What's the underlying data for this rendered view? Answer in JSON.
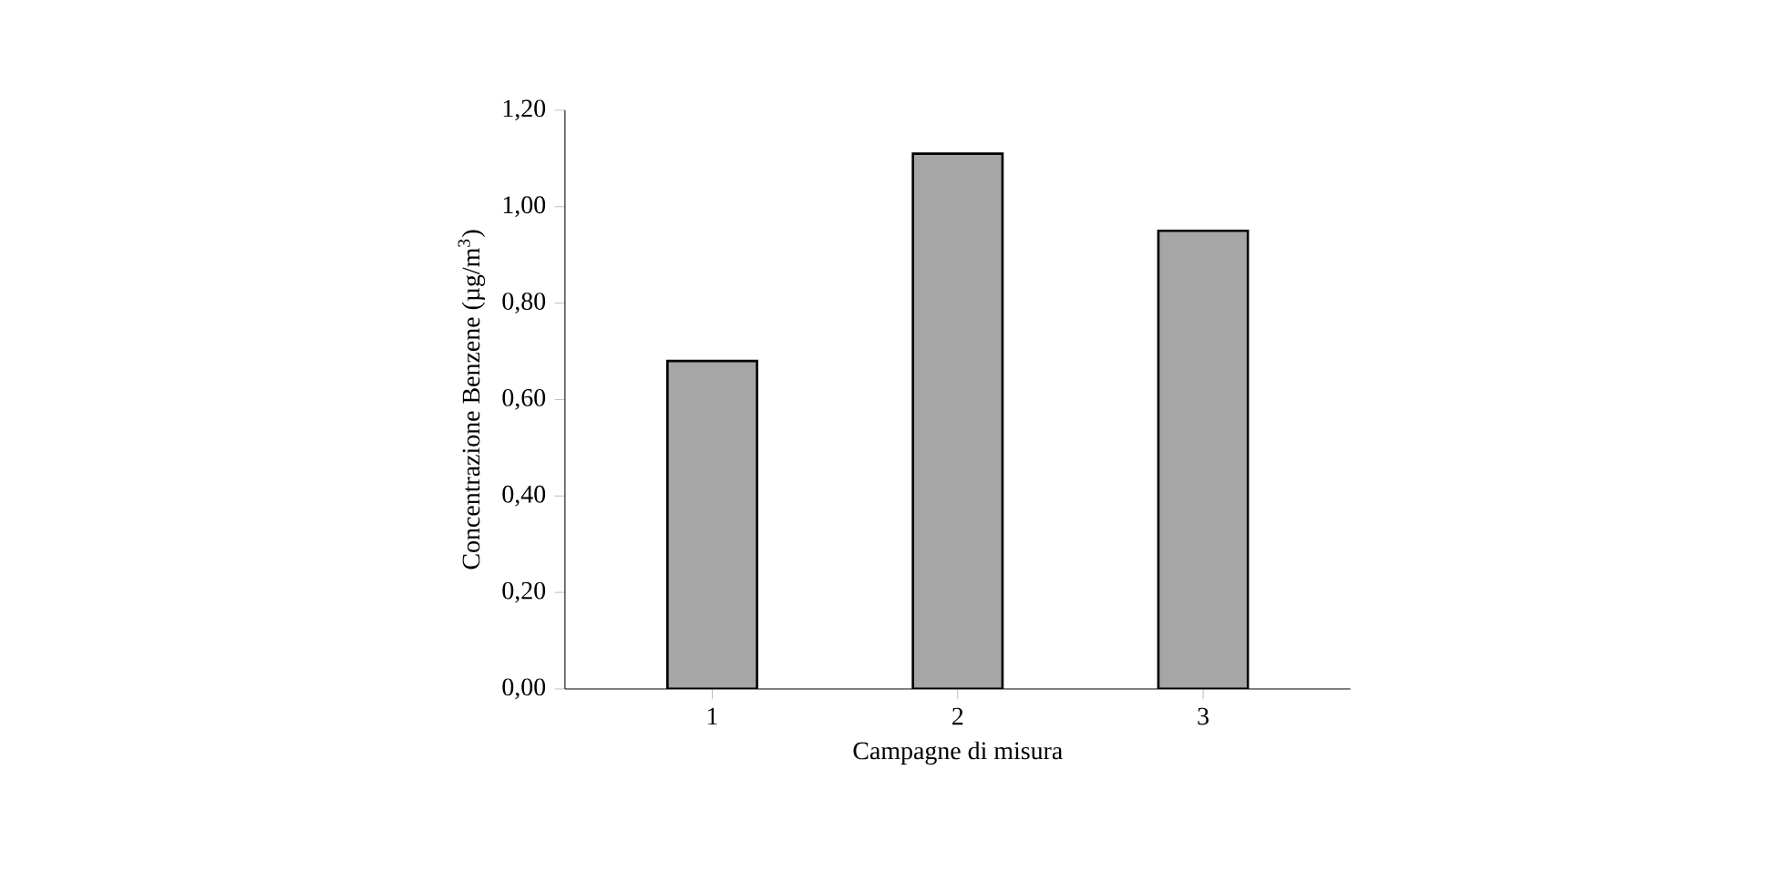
{
  "chart_data": {
    "type": "bar",
    "xlabel": "Campagne di misura",
    "ylabel": "Concentrazione Benzene (µg/m$^{3}$)",
    "categories": [
      "1",
      "2",
      "3"
    ],
    "values": [
      0.68,
      1.11,
      0.95
    ],
    "color": "#a6a6a6",
    "ylim": [
      0,
      1.2
    ],
    "yticks": [
      {
        "value": 0,
        "label": "0,00"
      },
      {
        "value": 0.2,
        "label": "0,20"
      },
      {
        "value": 0.4,
        "label": "0,40"
      },
      {
        "value": 0.6,
        "label": "0,60"
      },
      {
        "value": 0.8,
        "label": "0,80"
      },
      {
        "value": 1.0,
        "label": "1,00"
      },
      {
        "value": 1.2,
        "label": "1,20"
      }
    ],
    "grid": false
  }
}
